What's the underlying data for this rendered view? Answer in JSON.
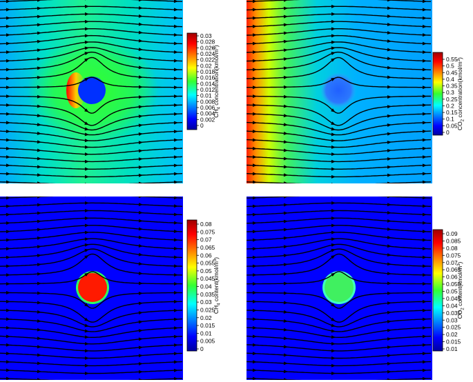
{
  "chart_data": [
    {
      "type": "heatmap",
      "field": "CH4 concentration",
      "colorbar": {
        "label": {
          "pre": "CH",
          "sub": "4",
          "mid": " concentration(kmol/m",
          "sup": "3",
          "post": ")"
        },
        "range": [
          0,
          0.031
        ],
        "ticks": [
          "0",
          "0.002",
          "0.004",
          "0.006",
          "0.008",
          "0.01",
          "0.012",
          "0.014",
          "0.016",
          "0.018",
          "0.02",
          "0.022",
          "0.024",
          "0.026",
          "0.028",
          "0.03"
        ]
      },
      "description_values": {
        "background": 0.011,
        "upstream_edge": 0.03,
        "inclusion": 0.0
      }
    },
    {
      "type": "heatmap",
      "field": "CO2 concentration",
      "colorbar": {
        "label": {
          "pre": "CO",
          "sub": "2",
          "mid": " concentration(kmol/m",
          "sup": "3",
          "post": ")"
        },
        "range": [
          0,
          0.57
        ],
        "ticks": [
          "0",
          "0.05",
          "0.1",
          "0.15",
          "0.2",
          "0.25",
          "0.3",
          "0.35",
          "0.4",
          "0.45",
          "0.5",
          "0.55"
        ]
      },
      "description_values": {
        "inlet": 0.55,
        "background": 0.12,
        "inclusion": 0.03
      }
    },
    {
      "type": "heatmap",
      "field": "CH4 content",
      "colorbar": {
        "label": {
          "pre": "CH",
          "sub": "4",
          "mid": " content(kmol/m",
          "sup": "3",
          "post": ")"
        },
        "range": [
          0,
          0.082
        ],
        "ticks": [
          "0",
          "0.005",
          "0.01",
          "0.015",
          "0.02",
          "0.025",
          "0.03",
          "0.035",
          "0.04",
          "0.045",
          "0.05",
          "0.055",
          "0.06",
          "0.065",
          "0.07",
          "0.075",
          "0.08"
        ]
      },
      "description_values": {
        "background": 0.0,
        "inclusion": 0.08
      }
    },
    {
      "type": "heatmap",
      "field": "CO2 content",
      "colorbar": {
        "label": {
          "pre": "CO",
          "sub": "2",
          "mid": " content(kmol/m",
          "sup": "3",
          "post": ")"
        },
        "range": [
          0.01,
          0.092
        ],
        "ticks": [
          "0.01",
          "0.015",
          "0.02",
          "0.025",
          "0.03",
          "0.035",
          "0.04",
          "0.045",
          "0.05",
          "0.055",
          "0.06",
          "0.065",
          "0.07",
          "0.075",
          "0.08",
          "0.085",
          "0.09"
        ]
      },
      "description_values": {
        "background": 0.012,
        "inclusion": 0.055
      }
    }
  ]
}
